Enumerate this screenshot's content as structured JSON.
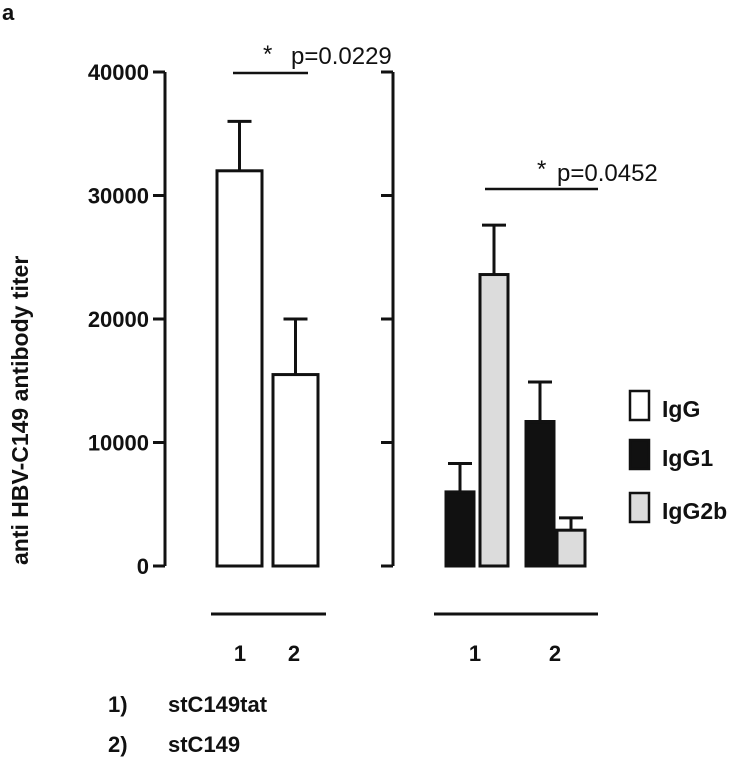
{
  "panel_label": "a",
  "chart_data": {
    "type": "bar",
    "ylabel": "anti HBV-C149 antibody titer",
    "ylim": [
      0,
      40000
    ],
    "yticks": [
      "0",
      "10000",
      "20000",
      "30000",
      "40000"
    ],
    "ytick_values": [
      0,
      10000,
      20000,
      30000,
      40000
    ],
    "left_panel": {
      "categories": [
        "1",
        "2"
      ],
      "series": [
        {
          "name": "IgG",
          "values": [
            32000,
            15500
          ],
          "errors": [
            4000,
            4500
          ]
        }
      ],
      "annotation": {
        "star": "*",
        "text": "p=0.0229"
      }
    },
    "right_panel": {
      "categories": [
        "1",
        "2"
      ],
      "series": [
        {
          "name": "IgG1",
          "values": [
            6000,
            11700
          ],
          "errors": [
            2300,
            3200
          ]
        },
        {
          "name": "IgG2b",
          "values": [
            23600,
            2900
          ],
          "errors": [
            4000,
            1000
          ]
        }
      ],
      "annotation": {
        "star": "*",
        "text": "p=0.0452"
      }
    },
    "legend": {
      "placement": "right",
      "entries": [
        {
          "name": "IgG",
          "color": "#ffffff"
        },
        {
          "name": "IgG1",
          "color": "#111111"
        },
        {
          "name": "IgG2b",
          "color": "#dcdcdc"
        }
      ]
    },
    "colors": {
      "IgG": "#ffffff",
      "IgG1": "#111111",
      "IgG2b": "#dcdcdc",
      "stroke": "#111111"
    }
  },
  "footnotes": [
    {
      "num": "1)",
      "label": "stC149tat"
    },
    {
      "num": "2)",
      "label": "stC149"
    }
  ]
}
